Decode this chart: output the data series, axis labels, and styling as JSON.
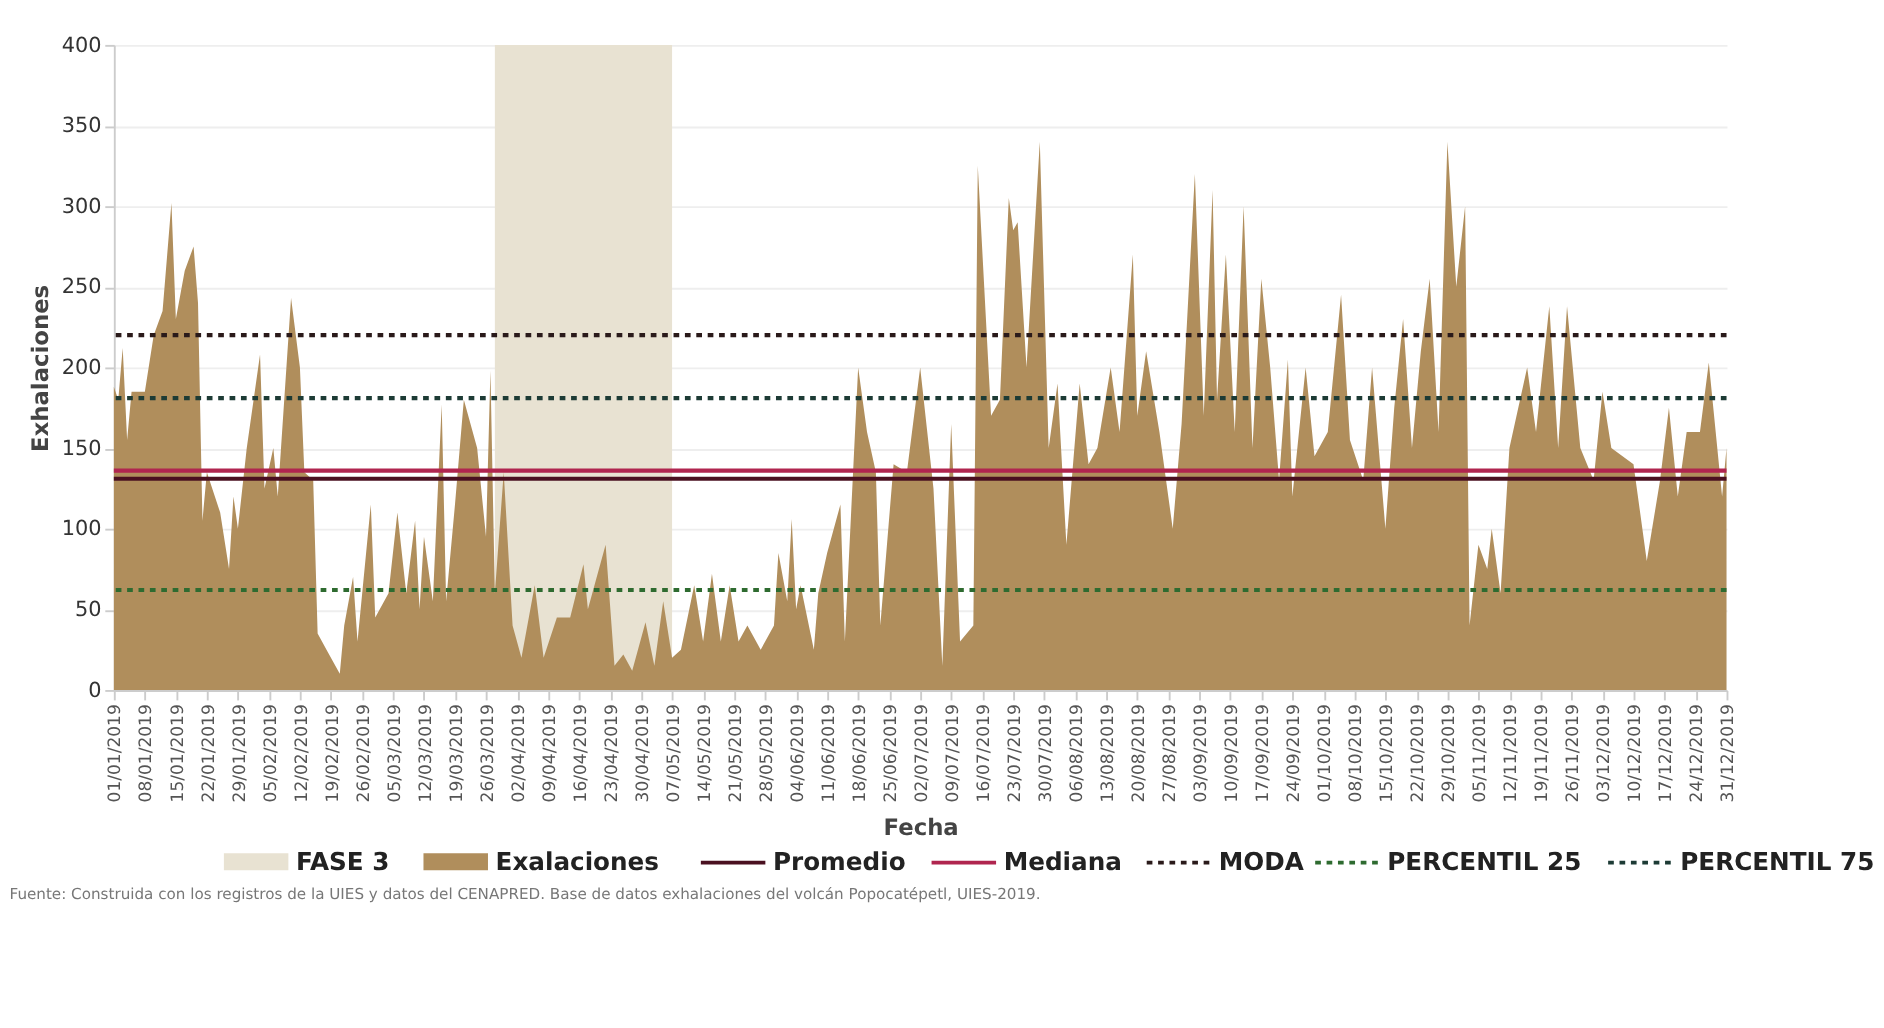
{
  "chart_data": {
    "type": "area",
    "xlabel": "Fecha",
    "ylabel": "Exhalaciones",
    "xlim": [
      "2019-01-01",
      "2019-12-31"
    ],
    "xticks": [
      {
        "value": "2019-01-01",
        "label": "01/01/2019"
      },
      {
        "value": "2019-01-08",
        "label": "08/01/2019"
      },
      {
        "value": "2019-01-15",
        "label": "15/01/2019"
      },
      {
        "value": "2019-01-22",
        "label": "22/01/2019"
      },
      {
        "value": "2019-01-29",
        "label": "29/01/2019"
      },
      {
        "value": "2019-02-05",
        "label": "05/02/2019"
      },
      {
        "value": "2019-02-12",
        "label": "12/02/2019"
      },
      {
        "value": "2019-02-19",
        "label": "19/02/2019"
      },
      {
        "value": "2019-02-26",
        "label": "26/02/2019"
      },
      {
        "value": "2019-03-05",
        "label": "05/03/2019"
      },
      {
        "value": "2019-03-12",
        "label": "12/03/2019"
      },
      {
        "value": "2019-03-19",
        "label": "19/03/2019"
      },
      {
        "value": "2019-03-26",
        "label": "26/03/2019"
      },
      {
        "value": "2019-04-02",
        "label": "02/04/2019"
      },
      {
        "value": "2019-04-09",
        "label": "09/04/2019"
      },
      {
        "value": "2019-04-16",
        "label": "16/04/2019"
      },
      {
        "value": "2019-04-23",
        "label": "23/04/2019"
      },
      {
        "value": "2019-04-30",
        "label": "30/04/2019"
      },
      {
        "value": "2019-05-07",
        "label": "07/05/2019"
      },
      {
        "value": "2019-05-14",
        "label": "14/05/2019"
      },
      {
        "value": "2019-05-21",
        "label": "21/05/2019"
      },
      {
        "value": "2019-05-28",
        "label": "28/05/2019"
      },
      {
        "value": "2019-06-04",
        "label": "04/06/2019"
      },
      {
        "value": "2019-06-11",
        "label": "11/06/2019"
      },
      {
        "value": "2019-06-18",
        "label": "18/06/2019"
      },
      {
        "value": "2019-06-25",
        "label": "25/06/2019"
      },
      {
        "value": "2019-07-02",
        "label": "02/07/2019"
      },
      {
        "value": "2019-07-09",
        "label": "09/07/2019"
      },
      {
        "value": "2019-07-16",
        "label": "16/07/2019"
      },
      {
        "value": "2019-07-23",
        "label": "23/07/2019"
      },
      {
        "value": "2019-07-30",
        "label": "30/07/2019"
      },
      {
        "value": "2019-08-06",
        "label": "06/08/2019"
      },
      {
        "value": "2019-08-13",
        "label": "13/08/2019"
      },
      {
        "value": "2019-08-20",
        "label": "20/08/2019"
      },
      {
        "value": "2019-08-27",
        "label": "27/08/2019"
      },
      {
        "value": "2019-09-03",
        "label": "03/09/2019"
      },
      {
        "value": "2019-09-10",
        "label": "10/09/2019"
      },
      {
        "value": "2019-09-17",
        "label": "17/09/2019"
      },
      {
        "value": "2019-09-24",
        "label": "24/09/2019"
      },
      {
        "value": "2019-10-01",
        "label": "01/10/2019"
      },
      {
        "value": "2019-10-08",
        "label": "08/10/2019"
      },
      {
        "value": "2019-10-15",
        "label": "15/10/2019"
      },
      {
        "value": "2019-10-22",
        "label": "22/10/2019"
      },
      {
        "value": "2019-10-29",
        "label": "29/10/2019"
      },
      {
        "value": "2019-11-05",
        "label": "05/11/2019"
      },
      {
        "value": "2019-11-12",
        "label": "12/11/2019"
      },
      {
        "value": "2019-11-19",
        "label": "19/11/2019"
      },
      {
        "value": "2019-11-26",
        "label": "26/11/2019"
      },
      {
        "value": "2019-12-03",
        "label": "03/12/2019"
      },
      {
        "value": "2019-12-10",
        "label": "10/12/2019"
      },
      {
        "value": "2019-12-17",
        "label": "17/12/2019"
      },
      {
        "value": "2019-12-24",
        "label": "24/12/2019"
      },
      {
        "value": "2019-12-31",
        "label": "31/12/2019"
      }
    ],
    "ylim": [
      0,
      400
    ],
    "yticks": [
      0,
      50,
      100,
      150,
      200,
      250,
      300,
      350,
      400
    ],
    "grid": "y",
    "legend": "bottom",
    "series": [
      {
        "name": "Exalaciones",
        "color": "#b08e5c",
        "x": [
          "2019-01-01",
          "2019-01-02",
          "2019-01-03",
          "2019-01-04",
          "2019-01-05",
          "2019-01-08",
          "2019-01-10",
          "2019-01-12",
          "2019-01-14",
          "2019-01-15",
          "2019-01-17",
          "2019-01-19",
          "2019-01-20",
          "2019-01-21",
          "2019-01-22",
          "2019-01-25",
          "2019-01-27",
          "2019-01-28",
          "2019-01-29",
          "2019-01-31",
          "2019-02-03",
          "2019-02-04",
          "2019-02-06",
          "2019-02-07",
          "2019-02-10",
          "2019-02-12",
          "2019-02-13",
          "2019-02-15",
          "2019-02-16",
          "2019-02-18",
          "2019-02-21",
          "2019-02-22",
          "2019-02-24",
          "2019-02-25",
          "2019-02-28",
          "2019-03-01",
          "2019-03-04",
          "2019-03-06",
          "2019-03-08",
          "2019-03-10",
          "2019-03-11",
          "2019-03-12",
          "2019-03-14",
          "2019-03-16",
          "2019-03-17",
          "2019-03-19",
          "2019-03-21",
          "2019-03-24",
          "2019-03-26",
          "2019-03-27",
          "2019-03-28",
          "2019-03-30",
          "2019-04-01",
          "2019-04-03",
          "2019-04-06",
          "2019-04-08",
          "2019-04-11",
          "2019-04-14",
          "2019-04-17",
          "2019-04-18",
          "2019-04-22",
          "2019-04-24",
          "2019-04-26",
          "2019-04-28",
          "2019-05-01",
          "2019-05-03",
          "2019-05-05",
          "2019-05-07",
          "2019-05-09",
          "2019-05-12",
          "2019-05-14",
          "2019-05-16",
          "2019-05-18",
          "2019-05-20",
          "2019-05-22",
          "2019-05-24",
          "2019-05-27",
          "2019-05-30",
          "2019-05-31",
          "2019-06-02",
          "2019-06-03",
          "2019-06-04",
          "2019-06-05",
          "2019-06-08",
          "2019-06-09",
          "2019-06-11",
          "2019-06-14",
          "2019-06-15",
          "2019-06-18",
          "2019-06-20",
          "2019-06-22",
          "2019-06-23",
          "2019-06-26",
          "2019-06-29",
          "2019-07-02",
          "2019-07-05",
          "2019-07-07",
          "2019-07-09",
          "2019-07-11",
          "2019-07-14",
          "2019-07-15",
          "2019-07-18",
          "2019-07-20",
          "2019-07-22",
          "2019-07-23",
          "2019-07-24",
          "2019-07-26",
          "2019-07-29",
          "2019-07-31",
          "2019-08-02",
          "2019-08-04",
          "2019-08-07",
          "2019-08-09",
          "2019-08-11",
          "2019-08-14",
          "2019-08-16",
          "2019-08-19",
          "2019-08-20",
          "2019-08-22",
          "2019-08-25",
          "2019-08-27",
          "2019-08-28",
          "2019-08-30",
          "2019-09-02",
          "2019-09-04",
          "2019-09-06",
          "2019-09-07",
          "2019-09-09",
          "2019-09-11",
          "2019-09-13",
          "2019-09-15",
          "2019-09-17",
          "2019-09-19",
          "2019-09-21",
          "2019-09-23",
          "2019-09-24",
          "2019-09-27",
          "2019-09-29",
          "2019-10-02",
          "2019-10-05",
          "2019-10-07",
          "2019-10-10",
          "2019-10-12",
          "2019-10-15",
          "2019-10-17",
          "2019-10-19",
          "2019-10-21",
          "2019-10-23",
          "2019-10-25",
          "2019-10-27",
          "2019-10-29",
          "2019-10-31",
          "2019-11-02",
          "2019-11-03",
          "2019-11-05",
          "2019-11-07",
          "2019-11-08",
          "2019-11-10",
          "2019-11-12",
          "2019-11-16",
          "2019-11-18",
          "2019-11-21",
          "2019-11-23",
          "2019-11-25",
          "2019-11-28",
          "2019-12-01",
          "2019-12-03",
          "2019-12-05",
          "2019-12-10",
          "2019-12-13",
          "2019-12-16",
          "2019-12-18",
          "2019-12-20",
          "2019-12-22",
          "2019-12-25",
          "2019-12-27",
          "2019-12-30",
          "2019-12-31"
        ],
        "values": [
          188,
          180,
          212,
          155,
          185,
          185,
          220,
          235,
          302,
          230,
          260,
          275,
          240,
          105,
          135,
          110,
          75,
          120,
          100,
          150,
          208,
          125,
          150,
          120,
          243,
          200,
          135,
          130,
          35,
          25,
          10,
          40,
          70,
          30,
          115,
          45,
          60,
          110,
          60,
          105,
          50,
          95,
          55,
          177,
          55,
          115,
          180,
          150,
          95,
          198,
          60,
          135,
          40,
          20,
          65,
          20,
          45,
          45,
          78,
          50,
          90,
          15,
          22,
          12,
          42,
          15,
          55,
          20,
          25,
          65,
          30,
          72,
          30,
          65,
          30,
          40,
          25,
          40,
          85,
          55,
          106,
          50,
          65,
          25,
          60,
          85,
          115,
          30,
          200,
          160,
          135,
          40,
          140,
          135,
          200,
          125,
          15,
          165,
          30,
          40,
          325,
          170,
          180,
          305,
          285,
          290,
          200,
          340,
          150,
          190,
          90,
          190,
          140,
          150,
          200,
          160,
          270,
          170,
          210,
          160,
          120,
          100,
          165,
          320,
          170,
          310,
          180,
          270,
          160,
          300,
          150,
          255,
          200,
          130,
          205,
          120,
          200,
          145,
          160,
          245,
          155,
          130,
          200,
          100,
          175,
          230,
          150,
          210,
          255,
          160,
          340,
          250,
          300,
          40,
          90,
          75,
          100,
          60,
          150,
          200,
          160,
          238,
          150,
          238,
          150,
          130,
          185,
          150,
          140,
          80,
          130,
          175,
          120,
          160,
          160,
          203,
          120,
          150
        ]
      }
    ],
    "bands": [
      {
        "axis": "x",
        "from": "2019-03-28",
        "to": "2019-05-07",
        "label": "FASE 3",
        "color": "#e8e2d2"
      }
    ],
    "ref_lines": [
      {
        "axis": "y",
        "value": 131,
        "label": "Promedio",
        "color": "#4a1020",
        "line_style": "solid"
      },
      {
        "axis": "y",
        "value": 136,
        "label": "Mediana",
        "color": "#b0254f",
        "line_style": "solid"
      },
      {
        "axis": "y",
        "value": 220,
        "label": "MODA",
        "color": "#2a1a1a",
        "line_style": "dotted"
      },
      {
        "axis": "y",
        "value": 62,
        "label": "PERCENTIL 25",
        "color": "#2e6b30",
        "line_style": "dotted"
      },
      {
        "axis": "y",
        "value": 181,
        "label": "PERCENTIL 75",
        "color": "#1d3b35",
        "line_style": "dotted"
      }
    ],
    "annotations": [
      "Fuente: Construida con los registros de la UIES y datos del CENAPRED. Base de datos exhalaciones del volcán Popocatépetl, UIES-2019."
    ]
  }
}
